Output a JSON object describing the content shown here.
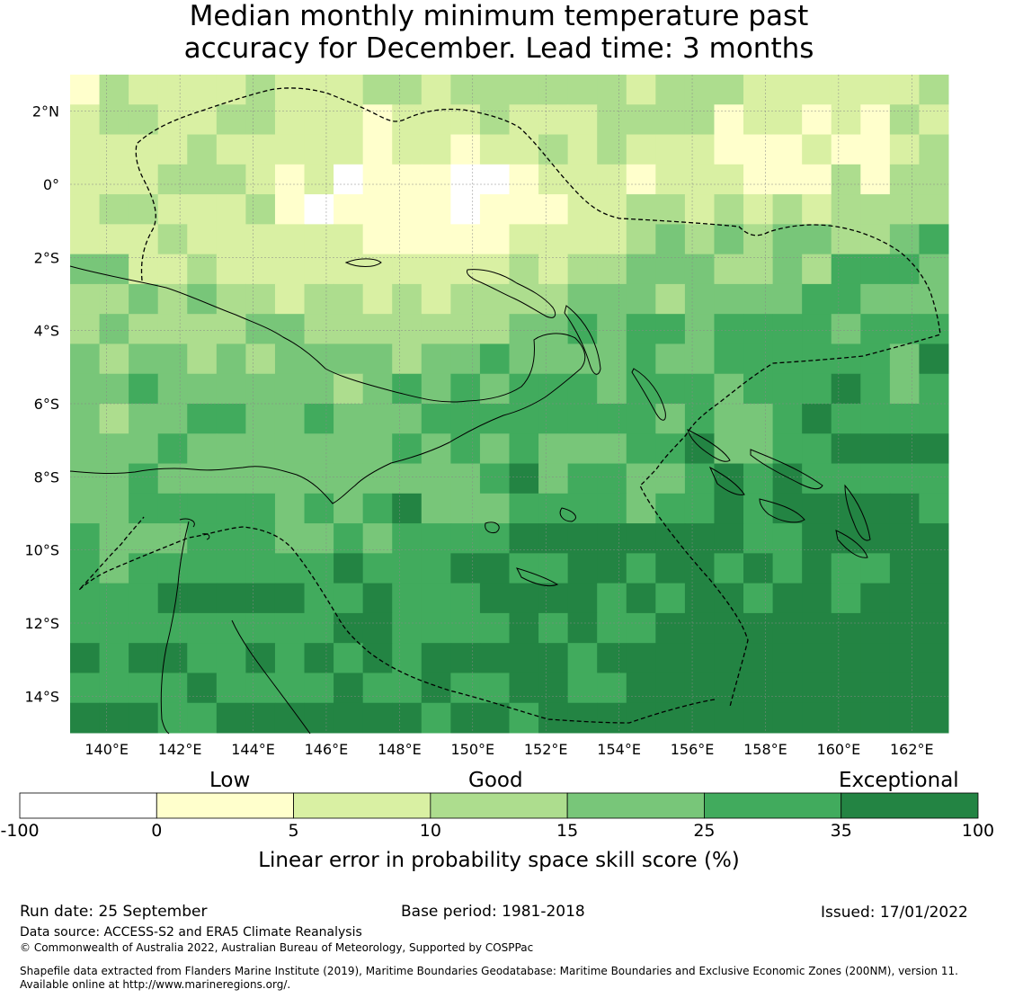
{
  "title": {
    "line1": "Median monthly minimum temperature past",
    "line2": "accuracy for December. Lead time: 3 months"
  },
  "map": {
    "lat_labels": [
      "2°N",
      "0°",
      "2°S",
      "4°S",
      "6°S",
      "8°S",
      "10°S",
      "12°S",
      "14°S"
    ],
    "lon_labels": [
      "140°E",
      "142°E",
      "144°E",
      "146°E",
      "148°E",
      "150°E",
      "152°E",
      "154°E",
      "156°E",
      "158°E",
      "160°E",
      "162°E"
    ],
    "lat_values": [
      2,
      0,
      -2,
      -4,
      -6,
      -8,
      -10,
      -12,
      -14
    ],
    "lon_values": [
      140,
      142,
      144,
      146,
      148,
      150,
      152,
      154,
      156,
      158,
      160,
      162
    ],
    "extent": {
      "lon_min": 139.0,
      "lon_max": 163.0,
      "lat_min": -15.0,
      "lat_max": 3.0
    },
    "grid_cells": {
      "cols": 30,
      "rows": 22
    }
  },
  "colorbar": {
    "categories": {
      "low": "Low",
      "good": "Good",
      "exceptional": "Exceptional"
    },
    "ticks": [
      "-100",
      "0",
      "5",
      "10",
      "15",
      "25",
      "35",
      "100"
    ],
    "colors": [
      "#ffffff",
      "#ffffcc",
      "#d9f0a3",
      "#addd8e",
      "#78c679",
      "#41ab5d",
      "#238443"
    ],
    "label": "Linear error in probability space skill score (%)"
  },
  "footer": {
    "run_date": "Run date: 25 September",
    "base_period": "Base period: 1981-2018",
    "issued": "Issued: 17/01/2022",
    "data_source": "Data source: ACCESS-S2 and ERA5 Climate Reanalysis",
    "copyright": "© Commonwealth of Australia 2022, Australian Bureau of Meteorology, Supported by COSPPac",
    "shapefile_line1": "Shapefile data extracted from Flanders Marine Institute (2019), Maritime Boundaries Geodatabase: Maritime Boundaries and Exclusive Economic Zones (200NM), version 11.",
    "shapefile_line2": "Available online at http://www.marineregions.org/."
  }
}
